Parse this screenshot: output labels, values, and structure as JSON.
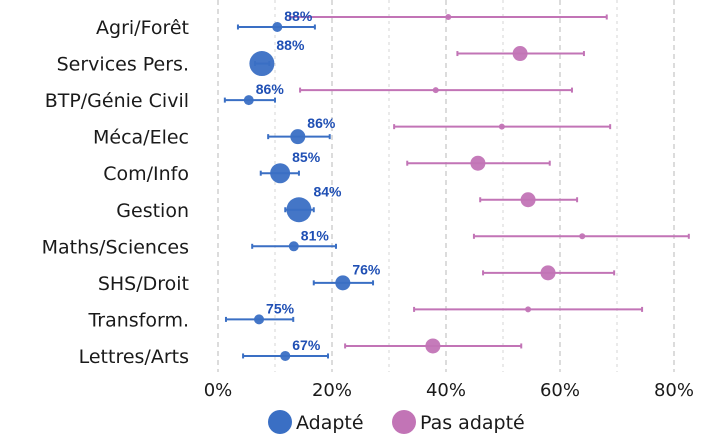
{
  "chart_data": {
    "type": "scatter",
    "subtype": "dot-plot-with-error-bars",
    "title": "",
    "xlabel": "",
    "ylabel": "",
    "xlim": [
      0,
      85
    ],
    "x_ticks": [
      0,
      20,
      40,
      60,
      80
    ],
    "x_tick_labels": [
      "0%",
      "20%",
      "40%",
      "60%",
      "80%"
    ],
    "minor_grid_step": 10,
    "grid": true,
    "legend_position": "bottom",
    "categories": [
      "Agri/Forêt",
      "Services Pers.",
      "BTP/Génie Civil",
      "Méca/Elec",
      "Com/Info",
      "Gestion",
      "Maths/Sciences",
      "SHS/Droit",
      "Transform.",
      "Lettres/Arts"
    ],
    "series": [
      {
        "name": "Adapté",
        "color": "#3a6fc4",
        "label_color": "#1f4fb4",
        "values": [
          10.4,
          7.7,
          5.4,
          14.0,
          10.9,
          14.2,
          13.3,
          21.9,
          7.2,
          11.8
        ],
        "ci_low": [
          3.5,
          6.5,
          1.2,
          8.8,
          7.5,
          11.8,
          6.0,
          16.8,
          1.4,
          4.4
        ],
        "ci_high": [
          17.0,
          9.0,
          10.0,
          19.6,
          14.2,
          16.8,
          20.7,
          27.2,
          13.2,
          19.3
        ],
        "marker_weight": [
          2,
          5,
          2,
          3,
          4,
          5,
          2,
          3,
          2,
          2
        ],
        "data_labels": [
          "88%",
          "88%",
          "86%",
          "86%",
          "85%",
          "84%",
          "81%",
          "76%",
          "75%",
          "67%"
        ]
      },
      {
        "name": "Pas adapté",
        "color": "#c274b6",
        "values": [
          40.4,
          53.0,
          38.2,
          49.8,
          45.6,
          54.4,
          63.9,
          57.9,
          54.4,
          37.7
        ],
        "ci_low": [
          12.6,
          42.0,
          14.4,
          30.9,
          33.2,
          46.0,
          44.9,
          46.5,
          34.4,
          22.3
        ],
        "ci_high": [
          68.2,
          64.2,
          62.1,
          68.8,
          58.2,
          63.0,
          82.6,
          69.5,
          74.4,
          53.2
        ],
        "marker_weight": [
          1,
          3,
          1,
          1,
          3,
          3,
          1,
          3,
          1,
          3
        ]
      }
    ]
  }
}
